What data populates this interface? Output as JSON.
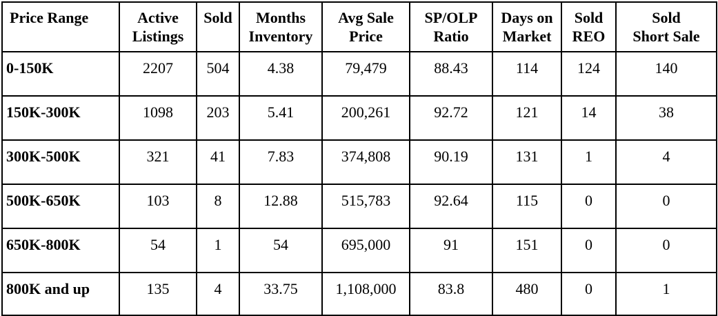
{
  "table": {
    "headers": [
      "Price Range",
      "Active Listings",
      "Sold",
      "Months Inventory",
      "Avg Sale Price",
      "SP/OLP Ratio",
      "Days on Market",
      "Sold REO",
      "Sold Short Sale"
    ],
    "header_lines": [
      [
        "Price Range",
        ""
      ],
      [
        "Active",
        "Listings"
      ],
      [
        "Sold",
        ""
      ],
      [
        "Months",
        "Inventory"
      ],
      [
        "Avg Sale",
        "Price"
      ],
      [
        "SP/OLP",
        "Ratio"
      ],
      [
        "Days on",
        "Market"
      ],
      [
        "Sold",
        "REO"
      ],
      [
        "Sold",
        "Short Sale"
      ]
    ],
    "rows": [
      [
        "0-150K",
        "2207",
        "504",
        "4.38",
        "79,479",
        "88.43",
        "114",
        "124",
        "140"
      ],
      [
        "150K-300K",
        "1098",
        "203",
        "5.41",
        "200,261",
        "92.72",
        "121",
        "14",
        "38"
      ],
      [
        "300K-500K",
        "321",
        "41",
        "7.83",
        "374,808",
        "90.19",
        "131",
        "1",
        "4"
      ],
      [
        "500K-650K",
        "103",
        "8",
        "12.88",
        "515,783",
        "92.64",
        "115",
        "0",
        "0"
      ],
      [
        "650K-800K",
        "54",
        "1",
        "54",
        "695,000",
        "91",
        "151",
        "0",
        "0"
      ],
      [
        "800K and up",
        "135",
        "4",
        "33.75",
        "1,108,000",
        "83.8",
        "480",
        "0",
        "1"
      ]
    ]
  }
}
